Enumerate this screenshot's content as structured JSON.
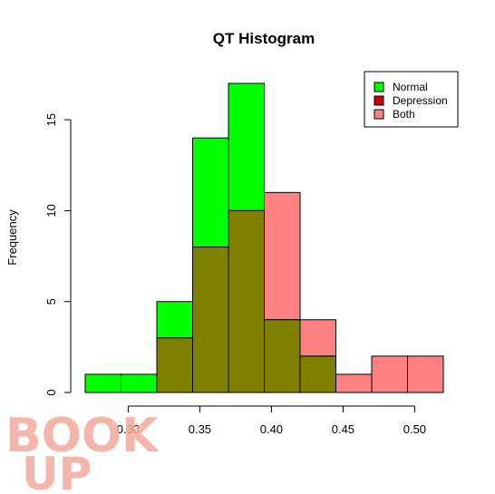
{
  "chart_data": {
    "type": "bar",
    "title": "QT Histogram",
    "xlabel": "",
    "ylabel": "Frequency",
    "bin_edges": [
      0.27,
      0.295,
      0.32,
      0.345,
      0.37,
      0.395,
      0.42,
      0.445,
      0.47,
      0.495,
      0.52
    ],
    "xlim": [
      0.27,
      0.52
    ],
    "ylim": [
      0,
      17
    ],
    "x_ticks": [
      "0.30",
      "0.35",
      "0.40",
      "0.45",
      "0.50"
    ],
    "x_tick_values": [
      0.3,
      0.35,
      0.4,
      0.45,
      0.5
    ],
    "y_ticks": [
      "0",
      "5",
      "10",
      "15"
    ],
    "y_tick_values": [
      0,
      5,
      10,
      15
    ],
    "series": [
      {
        "name": "Normal",
        "color": "#00ff00",
        "values": [
          1,
          1,
          5,
          14,
          17,
          4,
          2,
          0,
          0,
          0
        ]
      },
      {
        "name": "Depression",
        "color": "#cc0000",
        "values": [
          0,
          0,
          0,
          0,
          0,
          0,
          0,
          0,
          0,
          0
        ]
      },
      {
        "name": "Both",
        "color": "#ff8080",
        "values": [
          0,
          0,
          3,
          8,
          10,
          11,
          4,
          1,
          2,
          2
        ]
      }
    ],
    "overlap_color": "#808000",
    "legend_position": "top-right",
    "grid": false
  },
  "watermark": {
    "line1": "BOOK",
    "line2": "UP"
  }
}
